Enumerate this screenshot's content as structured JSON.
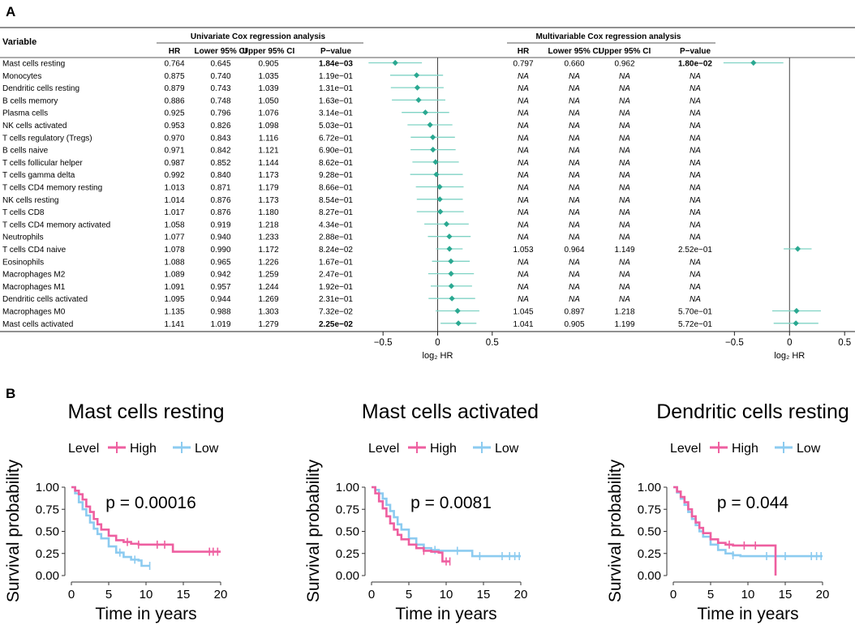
{
  "panel_a": {
    "label": "A",
    "variable_header": "Variable",
    "uni_title": "Univariate Cox regression analysis",
    "multi_title": "Multivariable Cox regression analysis",
    "columns": [
      "HR",
      "Lower 95% CI",
      "Upper 95% CI",
      "P−value"
    ],
    "axis_label": "log₂ HR",
    "rows": [
      {
        "name": "Mast cells resting",
        "uni": [
          "0.764",
          "0.645",
          "0.905",
          "1.84e−03"
        ],
        "uni_bold": true,
        "multi": [
          "0.797",
          "0.660",
          "0.962",
          "1.80e−02"
        ],
        "multi_bold": true
      },
      {
        "name": "Monocytes",
        "uni": [
          "0.875",
          "0.740",
          "1.035",
          "1.19e−01"
        ],
        "uni_bold": false,
        "multi": [
          "NA",
          "NA",
          "NA",
          "NA"
        ],
        "multi_bold": false
      },
      {
        "name": "Dendritic cells resting",
        "uni": [
          "0.879",
          "0.743",
          "1.039",
          "1.31e−01"
        ],
        "uni_bold": false,
        "multi": [
          "NA",
          "NA",
          "NA",
          "NA"
        ],
        "multi_bold": false
      },
      {
        "name": "B cells memory",
        "uni": [
          "0.886",
          "0.748",
          "1.050",
          "1.63e−01"
        ],
        "uni_bold": false,
        "multi": [
          "NA",
          "NA",
          "NA",
          "NA"
        ],
        "multi_bold": false
      },
      {
        "name": "Plasma cells",
        "uni": [
          "0.925",
          "0.796",
          "1.076",
          "3.14e−01"
        ],
        "uni_bold": false,
        "multi": [
          "NA",
          "NA",
          "NA",
          "NA"
        ],
        "multi_bold": false
      },
      {
        "name": "NK cells activated",
        "uni": [
          "0.953",
          "0.826",
          "1.098",
          "5.03e−01"
        ],
        "uni_bold": false,
        "multi": [
          "NA",
          "NA",
          "NA",
          "NA"
        ],
        "multi_bold": false
      },
      {
        "name": "T cells regulatory (Tregs)",
        "uni": [
          "0.970",
          "0.843",
          "1.116",
          "6.72e−01"
        ],
        "uni_bold": false,
        "multi": [
          "NA",
          "NA",
          "NA",
          "NA"
        ],
        "multi_bold": false
      },
      {
        "name": "B cells naive",
        "uni": [
          "0.971",
          "0.842",
          "1.121",
          "6.90e−01"
        ],
        "uni_bold": false,
        "multi": [
          "NA",
          "NA",
          "NA",
          "NA"
        ],
        "multi_bold": false
      },
      {
        "name": "T cells follicular helper",
        "uni": [
          "0.987",
          "0.852",
          "1.144",
          "8.62e−01"
        ],
        "uni_bold": false,
        "multi": [
          "NA",
          "NA",
          "NA",
          "NA"
        ],
        "multi_bold": false
      },
      {
        "name": "T cells gamma delta",
        "uni": [
          "0.992",
          "0.840",
          "1.173",
          "9.28e−01"
        ],
        "uni_bold": false,
        "multi": [
          "NA",
          "NA",
          "NA",
          "NA"
        ],
        "multi_bold": false
      },
      {
        "name": "T cells CD4 memory resting",
        "uni": [
          "1.013",
          "0.871",
          "1.179",
          "8.66e−01"
        ],
        "uni_bold": false,
        "multi": [
          "NA",
          "NA",
          "NA",
          "NA"
        ],
        "multi_bold": false
      },
      {
        "name": "NK cells resting",
        "uni": [
          "1.014",
          "0.876",
          "1.173",
          "8.54e−01"
        ],
        "uni_bold": false,
        "multi": [
          "NA",
          "NA",
          "NA",
          "NA"
        ],
        "multi_bold": false
      },
      {
        "name": "T cells CD8",
        "uni": [
          "1.017",
          "0.876",
          "1.180",
          "8.27e−01"
        ],
        "uni_bold": false,
        "multi": [
          "NA",
          "NA",
          "NA",
          "NA"
        ],
        "multi_bold": false
      },
      {
        "name": "T cells CD4 memory activated",
        "uni": [
          "1.058",
          "0.919",
          "1.218",
          "4.34e−01"
        ],
        "uni_bold": false,
        "multi": [
          "NA",
          "NA",
          "NA",
          "NA"
        ],
        "multi_bold": false
      },
      {
        "name": "Neutrophils",
        "uni": [
          "1.077",
          "0.940",
          "1.233",
          "2.88e−01"
        ],
        "uni_bold": false,
        "multi": [
          "NA",
          "NA",
          "NA",
          "NA"
        ],
        "multi_bold": false
      },
      {
        "name": "T cells CD4 naive",
        "uni": [
          "1.078",
          "0.990",
          "1.172",
          "8.24e−02"
        ],
        "uni_bold": false,
        "multi": [
          "1.053",
          "0.964",
          "1.149",
          "2.52e−01"
        ],
        "multi_bold": false
      },
      {
        "name": "Eosinophils",
        "uni": [
          "1.088",
          "0.965",
          "1.226",
          "1.67e−01"
        ],
        "uni_bold": false,
        "multi": [
          "NA",
          "NA",
          "NA",
          "NA"
        ],
        "multi_bold": false
      },
      {
        "name": "Macrophages M2",
        "uni": [
          "1.089",
          "0.942",
          "1.259",
          "2.47e−01"
        ],
        "uni_bold": false,
        "multi": [
          "NA",
          "NA",
          "NA",
          "NA"
        ],
        "multi_bold": false
      },
      {
        "name": "Macrophages M1",
        "uni": [
          "1.091",
          "0.957",
          "1.244",
          "1.92e−01"
        ],
        "uni_bold": false,
        "multi": [
          "NA",
          "NA",
          "NA",
          "NA"
        ],
        "multi_bold": false
      },
      {
        "name": "Dendritic cells activated",
        "uni": [
          "1.095",
          "0.944",
          "1.269",
          "2.31e−01"
        ],
        "uni_bold": false,
        "multi": [
          "NA",
          "NA",
          "NA",
          "NA"
        ],
        "multi_bold": false
      },
      {
        "name": "Macrophages M0",
        "uni": [
          "1.135",
          "0.988",
          "1.303",
          "7.32e−02"
        ],
        "uni_bold": false,
        "multi": [
          "1.045",
          "0.897",
          "1.218",
          "5.70e−01"
        ],
        "multi_bold": false
      },
      {
        "name": "Mast cells activated",
        "uni": [
          "1.141",
          "1.019",
          "1.279",
          "2.25e−02"
        ],
        "uni_bold": true,
        "multi": [
          "1.041",
          "0.905",
          "1.199",
          "5.72e−01"
        ],
        "multi_bold": false
      }
    ]
  },
  "panel_b": {
    "label": "B",
    "legend_title": "Level",
    "legend_items": [
      "High",
      "Low"
    ],
    "ylabel": "Survival probability",
    "xlabel": "Time in years",
    "x_ticks": [
      "0",
      "5",
      "10",
      "15",
      "20"
    ],
    "y_ticks": [
      "0.00",
      "0.25",
      "0.50",
      "0.75",
      "1.00"
    ],
    "plots": [
      {
        "title": "Mast cells resting",
        "pvalue": "p = 0.00016"
      },
      {
        "title": "Mast cells activated",
        "pvalue": "p = 0.0081"
      },
      {
        "title": "Dendritic cells resting",
        "pvalue": "p = 0.044"
      }
    ]
  },
  "chart_data": [
    {
      "type": "forest",
      "title": "Univariate Cox regression analysis",
      "xlabel": "log₂ HR",
      "xlim": [
        -0.65,
        0.65
      ],
      "x_ticks": [
        -0.5,
        0,
        0.5
      ],
      "reference_line": 0,
      "note": "points = log2(HR), whiskers = log2(95% CI) per row of panel A"
    },
    {
      "type": "forest",
      "title": "Multivariable Cox regression analysis",
      "xlabel": "log₂ HR",
      "xlim": [
        -0.65,
        0.55
      ],
      "x_ticks": [
        -0.5,
        0,
        0.5
      ],
      "reference_line": 0
    },
    {
      "type": "line",
      "subtype": "kaplan-meier",
      "title": "Mast cells resting",
      "pvalue": "p = 0.00016",
      "xlim": [
        0,
        20
      ],
      "ylim": [
        0,
        1
      ],
      "series": [
        {
          "name": "High",
          "color": "#ee5fa0",
          "x": [
            0,
            0.5,
            1,
            1.5,
            2,
            2.5,
            3,
            3.5,
            4,
            5,
            6,
            7,
            8,
            9,
            10,
            11,
            13.6,
            20
          ],
          "y": [
            1.0,
            0.96,
            0.92,
            0.86,
            0.78,
            0.72,
            0.64,
            0.58,
            0.52,
            0.45,
            0.4,
            0.38,
            0.36,
            0.35,
            0.35,
            0.35,
            0.27,
            0.27
          ],
          "censored": [
            7.5,
            9.0,
            11.5,
            12.5,
            18.5,
            19.0,
            19.6
          ]
        },
        {
          "name": "Low",
          "color": "#8ccbf0",
          "x": [
            0,
            0.5,
            1,
            1.5,
            2,
            2.5,
            3,
            3.5,
            4,
            5,
            6,
            7,
            8,
            9,
            9.4,
            10.5
          ],
          "y": [
            1.0,
            0.93,
            0.83,
            0.75,
            0.68,
            0.6,
            0.53,
            0.47,
            0.42,
            0.33,
            0.26,
            0.21,
            0.18,
            0.17,
            0.11,
            0.11
          ],
          "censored": [
            6.5,
            8.5,
            10.5
          ]
        }
      ]
    },
    {
      "type": "line",
      "subtype": "kaplan-meier",
      "title": "Mast cells activated",
      "pvalue": "p = 0.0081",
      "xlim": [
        0,
        20
      ],
      "ylim": [
        0,
        1
      ],
      "series": [
        {
          "name": "High",
          "color": "#ee5fa0",
          "x": [
            0,
            0.5,
            1,
            1.5,
            2,
            2.5,
            3,
            3.5,
            4,
            5,
            6,
            7,
            8,
            9,
            9.5,
            10.5
          ],
          "y": [
            1.0,
            0.93,
            0.84,
            0.76,
            0.67,
            0.59,
            0.52,
            0.46,
            0.41,
            0.35,
            0.31,
            0.28,
            0.27,
            0.26,
            0.16,
            0.16
          ],
          "censored": [
            7.0,
            10.0,
            10.5
          ]
        },
        {
          "name": "Low",
          "color": "#8ccbf0",
          "x": [
            0,
            0.5,
            1,
            1.5,
            2,
            2.5,
            3,
            3.5,
            4,
            5,
            6,
            7,
            8,
            9,
            10,
            12,
            13.5,
            20
          ],
          "y": [
            1.0,
            0.97,
            0.93,
            0.87,
            0.8,
            0.73,
            0.66,
            0.58,
            0.52,
            0.42,
            0.35,
            0.31,
            0.29,
            0.28,
            0.28,
            0.28,
            0.22,
            0.22
          ],
          "censored": [
            8.5,
            11.5,
            14.5,
            17.5,
            18.5,
            19.2,
            19.8
          ]
        }
      ]
    },
    {
      "type": "line",
      "subtype": "kaplan-meier",
      "title": "Dendritic cells resting",
      "pvalue": "p = 0.044",
      "xlim": [
        0,
        20
      ],
      "ylim": [
        0,
        1
      ],
      "series": [
        {
          "name": "High",
          "color": "#ee5fa0",
          "x": [
            0,
            0.5,
            1,
            1.5,
            2,
            2.5,
            3,
            3.5,
            4,
            5,
            6,
            7,
            8,
            9,
            13.7,
            13.7
          ],
          "y": [
            1.0,
            0.95,
            0.89,
            0.83,
            0.75,
            0.67,
            0.6,
            0.54,
            0.48,
            0.41,
            0.37,
            0.35,
            0.34,
            0.34,
            0.34,
            0.0
          ],
          "censored": [
            7.5,
            9.5,
            11.0
          ]
        },
        {
          "name": "Low",
          "color": "#8ccbf0",
          "x": [
            0,
            0.5,
            1,
            1.5,
            2,
            2.5,
            3,
            3.5,
            4,
            5,
            6,
            7,
            8,
            9,
            10,
            20
          ],
          "y": [
            1.0,
            0.94,
            0.87,
            0.8,
            0.72,
            0.64,
            0.57,
            0.5,
            0.44,
            0.35,
            0.29,
            0.25,
            0.23,
            0.22,
            0.22,
            0.22
          ],
          "censored": [
            8.0,
            12.5,
            15.0,
            18.5,
            19.2,
            19.8
          ]
        }
      ]
    }
  ]
}
